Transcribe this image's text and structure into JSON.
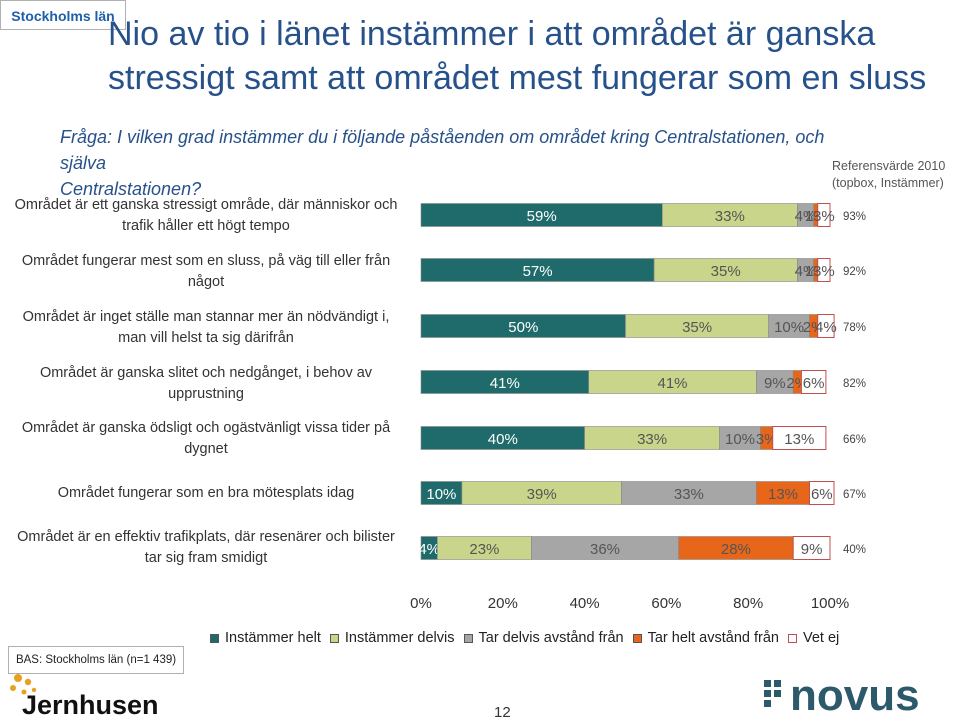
{
  "header": {
    "badge": "Stockholms län",
    "title_lines": [
      "Nio av tio i länet instämmer i att området är ganska",
      "stressigt samt att området mest fungerar som en sluss"
    ]
  },
  "question": {
    "line1": "Fråga: I vilken grad instämmer du i följande påståenden om området kring Centralstationen, och själva",
    "line2": "Centralstationen?"
  },
  "reference_note": {
    "line1": "Referensvärde 2010",
    "line2": "(topbox, Instämmer)"
  },
  "colors": {
    "instammer_helt": "#1f6b6b",
    "instammer_delvis": "#c9d58a",
    "tar_delvis_avstand": "#a6a6a6",
    "tar_helt_avstand": "#e8661a",
    "vet_ej": "#ffffff"
  },
  "chart_data": {
    "type": "bar",
    "orientation": "horizontal",
    "stacked": true,
    "xlim": [
      0,
      100
    ],
    "x_ticks": [
      "0%",
      "20%",
      "40%",
      "60%",
      "80%",
      "100%"
    ],
    "legend_position": "bottom",
    "categories": [
      [
        "Området är ett ganska stressigt område, där människor och",
        "trafik håller ett högt tempo"
      ],
      [
        "Området fungerar mest som en sluss, på väg till eller från",
        "något"
      ],
      [
        "Området är inget ställe man stannar mer än nödvändigt i,",
        "man vill helst ta sig därifrån"
      ],
      [
        "Området är ganska slitet och nedgånget, i behov av",
        "upprustning"
      ],
      [
        "Området är ganska ödsligt och ogästvänligt vissa tider på",
        "dygnet"
      ],
      [
        "Området fungerar som en bra mötesplats idag"
      ],
      [
        "Området är en effektiv trafikplats, där resenärer och bilister",
        "tar sig fram smidigt"
      ]
    ],
    "series": [
      {
        "name": "Instämmer helt",
        "values": [
          59,
          57,
          50,
          41,
          40,
          10,
          4
        ]
      },
      {
        "name": "Instämmer delvis",
        "values": [
          33,
          35,
          35,
          41,
          33,
          39,
          23
        ]
      },
      {
        "name": "Tar delvis avstånd från",
        "values": [
          4,
          4,
          10,
          9,
          10,
          33,
          36
        ]
      },
      {
        "name": "Tar helt avstånd från",
        "values": [
          1,
          1,
          2,
          2,
          3,
          13,
          28
        ]
      },
      {
        "name": "Vet ej",
        "values": [
          3,
          3,
          4,
          6,
          13,
          6,
          9
        ]
      }
    ],
    "reference_values": [
      "93%",
      "92%",
      "78%",
      "82%",
      "66%",
      "67%",
      "40%"
    ]
  },
  "footer": {
    "base": "BAS: Stockholms län (n=1 439)",
    "page_number": "12",
    "logo_left": "Jernhusen",
    "logo_right": "novus"
  }
}
